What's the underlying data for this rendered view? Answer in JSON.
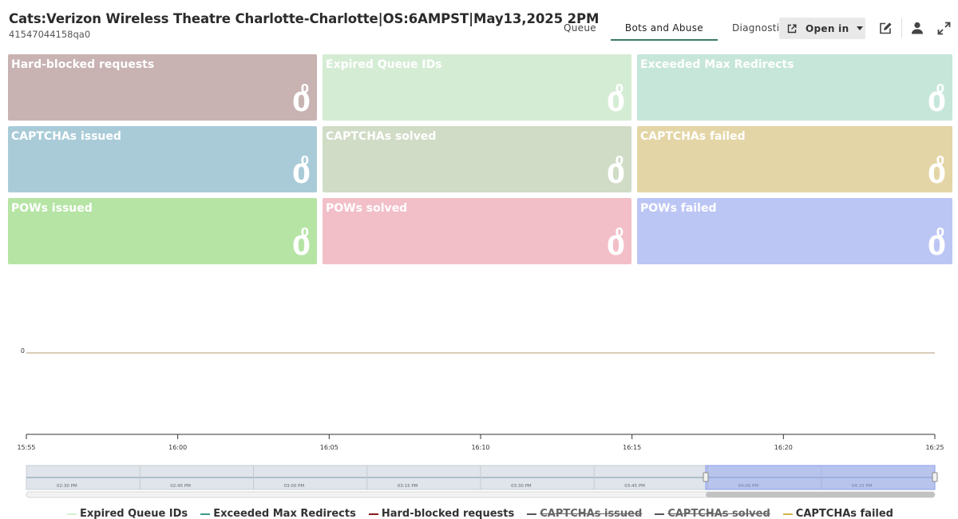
{
  "header": {
    "title": "Cats:Verizon Wireless Theatre Charlotte-Charlotte|OS:6AMPST|May13,2025 2PM",
    "subtitle": "41547044158qa0",
    "tabs": [
      {
        "label": "Queue",
        "active": false
      },
      {
        "label": "Bots and Abuse",
        "active": true
      },
      {
        "label": "Diagnostics",
        "active": false
      }
    ],
    "open_in_label": "Open in",
    "icons": [
      "external-link-icon",
      "chevron-down-icon",
      "edit-icon",
      "user-icon",
      "expand-icon"
    ]
  },
  "tiles": [
    {
      "title": "Hard-blocked requests",
      "small": "0",
      "big": "0",
      "color": "#c8b2b2"
    },
    {
      "title": "Expired Queue IDs",
      "small": "0",
      "big": "0",
      "color": "#d4ecd4"
    },
    {
      "title": "Exceeded Max Redirects",
      "small": "0",
      "big": "0",
      "color": "#c6e6d9"
    },
    {
      "title": "CAPTCHAs issued",
      "small": "0",
      "big": "0",
      "color": "#a9cbd8"
    },
    {
      "title": "CAPTCHAs solved",
      "small": "0",
      "big": "0",
      "color": "#d0dcc6"
    },
    {
      "title": "CAPTCHAs failed",
      "small": "0",
      "big": "0",
      "color": "#e4d5a6"
    },
    {
      "title": "POWs issued",
      "small": "0",
      "big": "0",
      "color": "#b6e4a5"
    },
    {
      "title": "POWs solved",
      "small": "0",
      "big": "0",
      "color": "#f2bfc8"
    },
    {
      "title": "POWs failed",
      "small": "0",
      "big": "0",
      "color": "#bcc6f4"
    }
  ],
  "chart_data": {
    "type": "line",
    "y_tick": "0",
    "x_ticks": [
      "15:55",
      "16:00",
      "16:05",
      "16:10",
      "16:15",
      "16:20",
      "16:25"
    ],
    "navigator_ticks": [
      "02:30 PM",
      "02:45 PM",
      "03:00 PM",
      "03:15 PM",
      "03:30 PM",
      "03:45 PM",
      "04:00 PM",
      "04:15 PM"
    ],
    "series": [
      {
        "name": "Expired Queue IDs",
        "color": "#d4ecd4",
        "visible": true,
        "values": [
          0,
          0,
          0,
          0,
          0,
          0,
          0
        ]
      },
      {
        "name": "Exceeded Max Redirects",
        "color": "#3b9c8a",
        "visible": true,
        "values": [
          0,
          0,
          0,
          0,
          0,
          0,
          0
        ]
      },
      {
        "name": "Hard-blocked requests",
        "color": "#8b1a1a",
        "visible": true,
        "values": [
          0,
          0,
          0,
          0,
          0,
          0,
          0
        ]
      },
      {
        "name": "CAPTCHAs issued",
        "color": "#555555",
        "visible": false,
        "values": [
          0,
          0,
          0,
          0,
          0,
          0,
          0
        ]
      },
      {
        "name": "CAPTCHAs solved",
        "color": "#555555",
        "visible": false,
        "values": [
          0,
          0,
          0,
          0,
          0,
          0,
          0
        ]
      },
      {
        "name": "CAPTCHAs failed",
        "color": "#d4b44a",
        "visible": true,
        "values": [
          0,
          0,
          0,
          0,
          0,
          0,
          0
        ]
      }
    ]
  }
}
